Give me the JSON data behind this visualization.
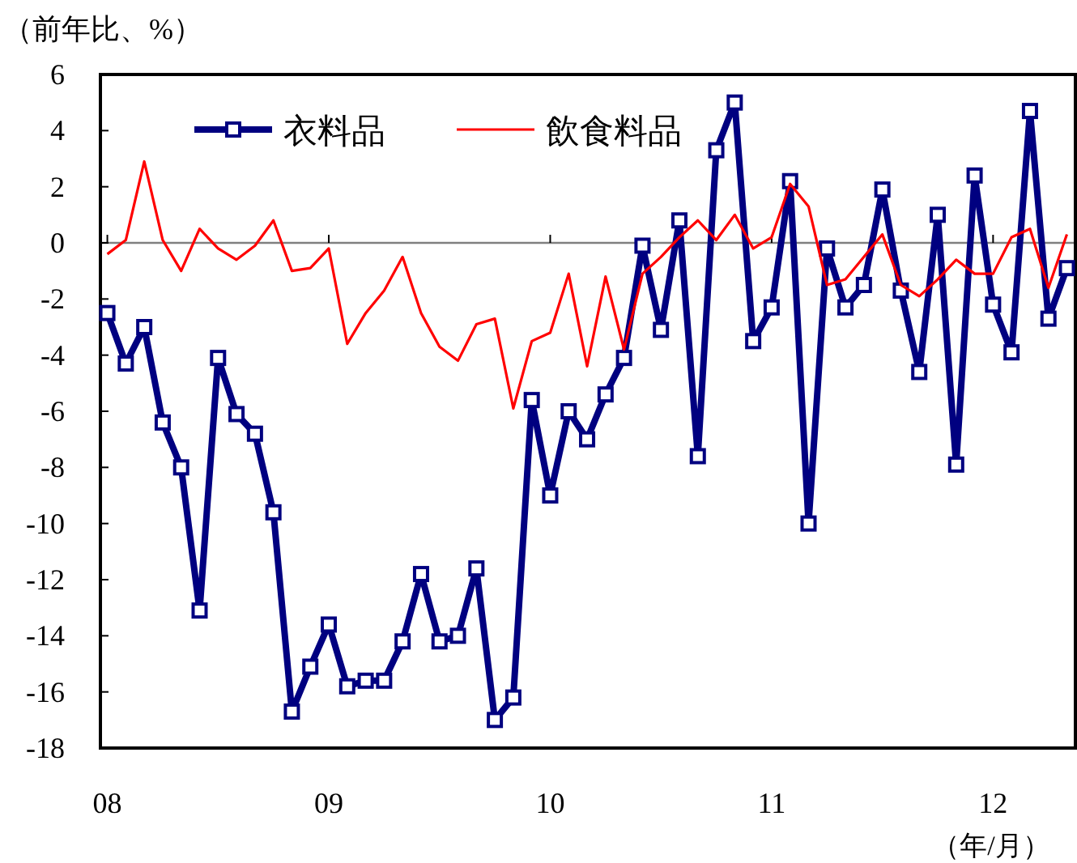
{
  "chart_data": {
    "type": "line",
    "ylabel": "（前年比、%）",
    "xlabel": "（年/月）",
    "x": [
      "2008-01",
      "2008-02",
      "2008-03",
      "2008-04",
      "2008-05",
      "2008-06",
      "2008-07",
      "2008-08",
      "2008-09",
      "2008-10",
      "2008-11",
      "2008-12",
      "2009-01",
      "2009-02",
      "2009-03",
      "2009-04",
      "2009-05",
      "2009-06",
      "2009-07",
      "2009-08",
      "2009-09",
      "2009-10",
      "2009-11",
      "2009-12",
      "2010-01",
      "2010-02",
      "2010-03",
      "2010-04",
      "2010-05",
      "2010-06",
      "2010-07",
      "2010-08",
      "2010-09",
      "2010-10",
      "2010-11",
      "2010-12",
      "2011-01",
      "2011-02",
      "2011-03",
      "2011-04",
      "2011-05",
      "2011-06",
      "2011-07",
      "2011-08",
      "2011-09",
      "2011-10",
      "2011-11",
      "2011-12",
      "2012-01",
      "2012-02",
      "2012-03",
      "2012-04",
      "2012-05"
    ],
    "series": [
      {
        "name": "衣料品",
        "color": "#000080",
        "marker": "square",
        "values": [
          -2.5,
          -4.3,
          -3.0,
          -6.4,
          -8.0,
          -13.1,
          -4.1,
          -6.1,
          -6.8,
          -9.6,
          -16.7,
          -15.1,
          -13.6,
          -15.8,
          -15.6,
          -15.6,
          -14.2,
          -11.8,
          -14.2,
          -14.0,
          -11.6,
          -17.0,
          -16.2,
          -5.6,
          -9.0,
          -6.0,
          -7.0,
          -5.4,
          -4.1,
          -0.1,
          -3.1,
          0.8,
          -7.6,
          3.3,
          5.0,
          -3.5,
          -2.3,
          2.2,
          -10.0,
          -0.2,
          -2.3,
          -1.5,
          1.9,
          -1.7,
          -4.6,
          1.0,
          -7.9,
          2.4,
          -2.2,
          -3.9,
          4.7,
          -2.7,
          -0.9
        ]
      },
      {
        "name": "飲食料品",
        "color": "#ff0000",
        "marker": "none",
        "values": [
          -0.4,
          0.1,
          2.9,
          0.1,
          -1.0,
          0.5,
          -0.2,
          -0.6,
          -0.1,
          0.8,
          -1.0,
          -0.9,
          -0.2,
          -3.6,
          -2.5,
          -1.7,
          -0.5,
          -2.5,
          -3.7,
          -4.2,
          -2.9,
          -2.7,
          -5.9,
          -3.5,
          -3.2,
          -1.1,
          -4.4,
          -1.2,
          -3.8,
          -1.1,
          -0.5,
          0.2,
          0.8,
          0.1,
          1.0,
          -0.2,
          0.2,
          2.1,
          1.3,
          -1.5,
          -1.3,
          -0.5,
          0.3,
          -1.5,
          -1.9,
          -1.3,
          -0.6,
          -1.1,
          -1.1,
          0.2,
          0.5,
          -1.6,
          0.3
        ]
      }
    ],
    "xlim": [
      "2007-12-20",
      "2012-05-15"
    ],
    "xticks": [
      {
        "value": "2008-01",
        "label": "08"
      },
      {
        "value": "2009-01",
        "label": "09"
      },
      {
        "value": "2010-01",
        "label": "10"
      },
      {
        "value": "2011-01",
        "label": "11"
      },
      {
        "value": "2012-01",
        "label": "12"
      }
    ],
    "ylim": [
      -18,
      6
    ],
    "yticks": [
      -18,
      -16,
      -14,
      -12,
      -10,
      -8,
      -6,
      -4,
      -2,
      0,
      2,
      4,
      6
    ],
    "ref_lines": [
      {
        "axis": "y",
        "value": 0,
        "color": "#808080"
      }
    ],
    "grid": false,
    "legend": "top",
    "line_style": "solid"
  }
}
